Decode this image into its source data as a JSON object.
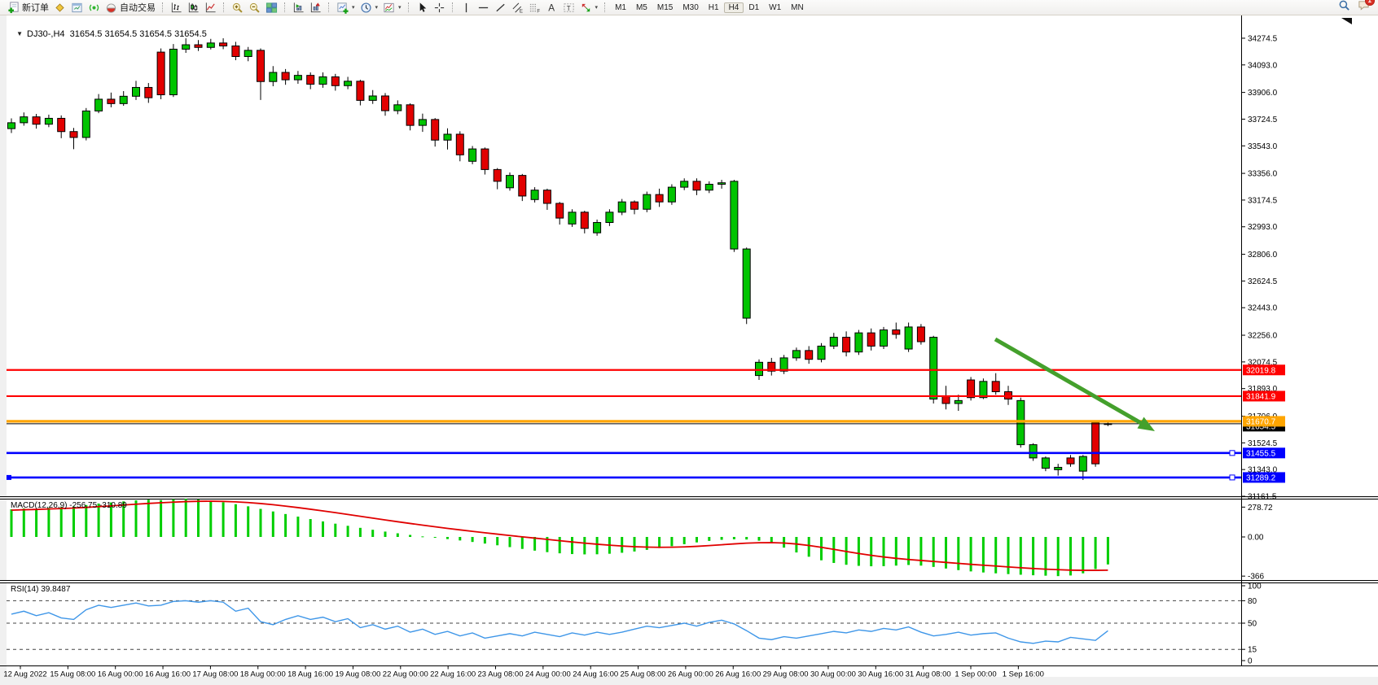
{
  "toolbar": {
    "buttons": [
      {
        "name": "new-order",
        "icon": "new-order-icon",
        "label": "新订单"
      },
      {
        "name": "charts",
        "icon": "chart-gold-icon"
      },
      {
        "name": "market-watch",
        "icon": "market-watch-icon"
      },
      {
        "name": "signals",
        "icon": "signals-icon"
      },
      {
        "name": "auto-trading",
        "icon": "auto-trading-icon",
        "label": "自动交易"
      },
      {
        "sep": true
      },
      {
        "name": "bar-chart-mode",
        "icon": "bar-chart-icon"
      },
      {
        "name": "candlestick-chart-mode",
        "icon": "candlestick-chart-icon"
      },
      {
        "name": "line-chart-mode",
        "icon": "line-chart-icon"
      },
      {
        "sep": true
      },
      {
        "name": "zoom-in",
        "icon": "zoom-in-icon"
      },
      {
        "name": "zoom-out",
        "icon": "zoom-out-icon"
      },
      {
        "name": "tile-windows",
        "icon": "tile-windows-icon"
      },
      {
        "sep": true
      },
      {
        "name": "navigator",
        "icon": "navigator-icon"
      },
      {
        "name": "data-window",
        "icon": "data-window-icon"
      },
      {
        "sep": true
      },
      {
        "name": "indicators",
        "icon": "indicators-icon",
        "arrow": true
      },
      {
        "name": "periods",
        "icon": "periods-icon",
        "arrow": true
      },
      {
        "name": "templates",
        "icon": "templates-icon",
        "arrow": true
      },
      {
        "sep": true
      },
      {
        "name": "cursor",
        "icon": "cursor-icon"
      },
      {
        "name": "crosshair",
        "icon": "crosshair-icon"
      },
      {
        "sep": true
      },
      {
        "name": "vertical-line",
        "icon": "vertical-line-icon"
      },
      {
        "name": "horizontal-line",
        "icon": "horizontal-line-icon"
      },
      {
        "name": "trendline",
        "icon": "trendline-icon"
      },
      {
        "name": "equidistant-channel",
        "icon": "equidistant-channel-icon"
      },
      {
        "name": "fibonacci-retracement",
        "icon": "fibonacci-icon"
      },
      {
        "name": "text",
        "icon": "text-icon"
      },
      {
        "name": "text-label",
        "icon": "text-label-icon"
      },
      {
        "name": "arrows",
        "icon": "arrows-icon",
        "arrow": true
      },
      {
        "sep": true
      }
    ],
    "timeframes": [
      {
        "label": "M1"
      },
      {
        "label": "M5"
      },
      {
        "label": "M15"
      },
      {
        "label": "M30"
      },
      {
        "label": "H1"
      },
      {
        "label": "H4",
        "active": true
      },
      {
        "label": "D1"
      },
      {
        "label": "W1"
      },
      {
        "label": "MN"
      }
    ],
    "right": [
      {
        "name": "search",
        "icon": "search-icon"
      },
      {
        "name": "notifications",
        "icon": "chat-icon",
        "badge": "1"
      }
    ]
  },
  "chart": {
    "title": "DJ30-,H4  31654.5 31654.5 31654.5 31654.5",
    "symbol": "DJ30-",
    "period": "H4",
    "ohlc": "31654.5 31654.5 31654.5 31654.5",
    "price_ticks": [
      "34274.5",
      "34093.0",
      "33906.0",
      "33724.5",
      "33543.0",
      "33356.0",
      "33174.5",
      "32993.0",
      "32806.0",
      "32624.5",
      "32443.0",
      "32256.0",
      "32074.5",
      "31893.0",
      "31706.0",
      "31524.5",
      "31343.0",
      "31161.5"
    ],
    "hlines": [
      {
        "price": 32019.8,
        "label": "32019.8",
        "color": "#FF0000",
        "width": 2.2
      },
      {
        "price": 31841.9,
        "label": "31841.9",
        "color": "#FF0000",
        "width": 2.2
      },
      {
        "price": 31670.7,
        "label": "31670.7",
        "color": "#FFA500",
        "width": 3.2
      },
      {
        "price": 31455.5,
        "label": "31455.5",
        "color": "#0000FF",
        "width": 2.6,
        "handle": true
      },
      {
        "price": 31289.2,
        "label": "31289.2",
        "color": "#0000FF",
        "width": 2.6,
        "handle": true,
        "left_handle": true
      }
    ],
    "current_price": {
      "value": 31654.5,
      "label": "31654.5",
      "color": "#000000"
    },
    "time_ticks": [
      "12 Aug 2022",
      "15 Aug 08:00",
      "16 Aug 00:00",
      "16 Aug 16:00",
      "17 Aug 08:00",
      "18 Aug 00:00",
      "18 Aug 16:00",
      "19 Aug 08:00",
      "22 Aug 00:00",
      "22 Aug 16:00",
      "23 Aug 08:00",
      "24 Aug 00:00",
      "24 Aug 16:00",
      "25 Aug 08:00",
      "26 Aug 00:00",
      "26 Aug 16:00",
      "29 Aug 08:00",
      "30 Aug 00:00",
      "30 Aug 16:00",
      "31 Aug 08:00",
      "1 Sep 00:00",
      "1 Sep 16:00"
    ],
    "colors": {
      "up": "#00C400",
      "down": "#E20000",
      "candle_outline": "#000000",
      "macd_histogram": "#00CE00",
      "macd_signal": "#E00000",
      "rsi_line": "#3E96E8",
      "arrow": "#44A02C",
      "axis_text": "#000000"
    }
  },
  "chart_data": {
    "type": "candlestick+indicators",
    "symbol": "DJ30-",
    "period": "H4",
    "title": "DJ30-,H4  31654.5 31654.5 31654.5 31654.5",
    "ylim": [
      31161.5,
      34424
    ],
    "candles": [
      [
        33660,
        33730,
        33630,
        33700
      ],
      [
        33700,
        33770,
        33680,
        33740
      ],
      [
        33740,
        33760,
        33660,
        33690
      ],
      [
        33690,
        33755,
        33670,
        33730
      ],
      [
        33730,
        33750,
        33595,
        33640
      ],
      [
        33640,
        33665,
        33520,
        33600
      ],
      [
        33600,
        33800,
        33580,
        33780
      ],
      [
        33780,
        33895,
        33765,
        33860
      ],
      [
        33860,
        33905,
        33805,
        33830
      ],
      [
        33830,
        33915,
        33815,
        33880
      ],
      [
        33880,
        33985,
        33855,
        33940
      ],
      [
        33940,
        33970,
        33835,
        33870
      ],
      [
        34180,
        34205,
        33860,
        33890
      ],
      [
        33890,
        34235,
        33875,
        34200
      ],
      [
        34200,
        34274,
        34175,
        34230
      ],
      [
        34230,
        34262,
        34188,
        34212
      ],
      [
        34212,
        34270,
        34198,
        34242
      ],
      [
        34242,
        34274,
        34200,
        34222
      ],
      [
        34222,
        34250,
        34125,
        34150
      ],
      [
        34150,
        34215,
        34118,
        34192
      ],
      [
        34192,
        34205,
        33855,
        33980
      ],
      [
        33980,
        34085,
        33948,
        34042
      ],
      [
        34042,
        34065,
        33958,
        33992
      ],
      [
        33992,
        34052,
        33965,
        34022
      ],
      [
        34022,
        34042,
        33928,
        33962
      ],
      [
        33962,
        34042,
        33938,
        34012
      ],
      [
        34012,
        34032,
        33918,
        33952
      ],
      [
        33952,
        34012,
        33928,
        33982
      ],
      [
        33982,
        33992,
        33818,
        33852
      ],
      [
        33852,
        33922,
        33828,
        33882
      ],
      [
        33882,
        33902,
        33748,
        33782
      ],
      [
        33782,
        33852,
        33758,
        33822
      ],
      [
        33822,
        33832,
        33648,
        33682
      ],
      [
        33682,
        33762,
        33638,
        33722
      ],
      [
        33722,
        33732,
        33538,
        33582
      ],
      [
        33582,
        33662,
        33518,
        33622
      ],
      [
        33622,
        33642,
        33438,
        33482
      ],
      [
        33438,
        33542,
        33418,
        33522
      ],
      [
        33522,
        33532,
        33348,
        33382
      ],
      [
        33382,
        33392,
        33248,
        33302
      ],
      [
        33258,
        33362,
        33238,
        33342
      ],
      [
        33342,
        33352,
        33168,
        33202
      ],
      [
        33178,
        33262,
        33158,
        33242
      ],
      [
        33242,
        33252,
        33108,
        33152
      ],
      [
        33152,
        33162,
        33008,
        33052
      ],
      [
        33012,
        33112,
        32992,
        33092
      ],
      [
        33092,
        33102,
        32948,
        32982
      ],
      [
        32952,
        33042,
        32932,
        33022
      ],
      [
        33022,
        33112,
        32998,
        33092
      ],
      [
        33092,
        33182,
        33072,
        33162
      ],
      [
        33162,
        33172,
        33078,
        33112
      ],
      [
        33112,
        33232,
        33092,
        33212
      ],
      [
        33212,
        33252,
        33128,
        33162
      ],
      [
        33162,
        33282,
        33142,
        33262
      ],
      [
        33262,
        33322,
        33242,
        33302
      ],
      [
        33302,
        33322,
        33208,
        33242
      ],
      [
        33242,
        33302,
        33222,
        33282
      ],
      [
        33282,
        33312,
        33252,
        33292
      ],
      [
        32842,
        33312,
        32822,
        33302
      ],
      [
        32372,
        32852,
        32332,
        32842
      ],
      [
        31982,
        32092,
        31952,
        32072
      ],
      [
        32072,
        32102,
        31982,
        32012
      ],
      [
        32012,
        32122,
        31992,
        32102
      ],
      [
        32102,
        32172,
        32082,
        32152
      ],
      [
        32152,
        32182,
        32062,
        32092
      ],
      [
        32092,
        32202,
        32072,
        32182
      ],
      [
        32182,
        32272,
        32162,
        32242
      ],
      [
        32242,
        32282,
        32112,
        32142
      ],
      [
        32142,
        32292,
        32122,
        32272
      ],
      [
        32272,
        32302,
        32152,
        32182
      ],
      [
        32182,
        32312,
        32162,
        32292
      ],
      [
        32292,
        32342,
        32232,
        32262
      ],
      [
        32162,
        32342,
        32142,
        32312
      ],
      [
        32312,
        32332,
        32192,
        32212
      ],
      [
        31822,
        32252,
        31792,
        32242
      ],
      [
        31842,
        31912,
        31752,
        31792
      ],
      [
        31792,
        31852,
        31742,
        31812
      ],
      [
        31952,
        31972,
        31812,
        31832
      ],
      [
        31832,
        31962,
        31822,
        31942
      ],
      [
        31942,
        31998,
        31852,
        31872
      ],
      [
        31872,
        31912,
        31782,
        31822
      ],
      [
        31512,
        31832,
        31492,
        31812
      ],
      [
        31422,
        31522,
        31402,
        31512
      ],
      [
        31352,
        31432,
        31332,
        31422
      ],
      [
        31342,
        31382,
        31302,
        31358
      ],
      [
        31422,
        31442,
        31362,
        31382
      ],
      [
        31332,
        31442,
        31272,
        31432
      ],
      [
        31662,
        31672,
        31362,
        31382
      ],
      [
        31650,
        31672,
        31638,
        31654.5
      ]
    ],
    "macd": {
      "label": "MACD(12,26,9) -256.75 -310.89",
      "params": "12,26,9",
      "main_value": -256.75,
      "signal_value": -310.89,
      "axis": [
        "278.72",
        "0.00",
        "-366"
      ],
      "axis_values": [
        278.72,
        0,
        -366
      ],
      "histogram": [
        258,
        266,
        262,
        272,
        278,
        284,
        298,
        312,
        322,
        332,
        342,
        348,
        344,
        352,
        356,
        350,
        338,
        324,
        306,
        286,
        262,
        238,
        214,
        190,
        167,
        145,
        124,
        104,
        85,
        67,
        50,
        34,
        19,
        5,
        -8,
        -20,
        -33,
        -47,
        -62,
        -78,
        -95,
        -112,
        -128,
        -142,
        -153,
        -160,
        -163,
        -162,
        -157,
        -148,
        -136,
        -121,
        -104,
        -86,
        -68,
        -51,
        -37,
        -27,
        -22,
        -24,
        -35,
        -60,
        -100,
        -145,
        -185,
        -218,
        -243,
        -260,
        -270,
        -274,
        -273,
        -268,
        -262,
        -268,
        -280,
        -295,
        -310,
        -322,
        -332,
        -340,
        -347,
        -353,
        -358,
        -362,
        -366,
        -360,
        -340,
        -300,
        -256.75
      ],
      "signal": [
        250,
        254,
        257,
        261,
        265,
        270,
        276,
        283,
        290,
        298,
        306,
        313,
        319,
        325,
        330,
        333,
        334,
        332,
        328,
        321,
        312,
        301,
        288,
        274,
        259,
        243,
        227,
        210,
        193,
        176,
        159,
        142,
        126,
        110,
        95,
        80,
        66,
        52,
        39,
        26,
        13,
        1,
        -11,
        -23,
        -35,
        -47,
        -58,
        -68,
        -77,
        -85,
        -91,
        -95,
        -97,
        -96,
        -93,
        -88,
        -81,
        -73,
        -65,
        -58,
        -54,
        -53,
        -57,
        -66,
        -80,
        -97,
        -116,
        -136,
        -155,
        -172,
        -187,
        -200,
        -211,
        -220,
        -229,
        -238,
        -247,
        -256,
        -264,
        -272,
        -280,
        -288,
        -295,
        -301,
        -306,
        -310,
        -312,
        -312,
        -310.89
      ]
    },
    "rsi": {
      "label": "RSI(14) 39.8487",
      "period": 14,
      "value": 39.8487,
      "axis": [
        "100",
        "80",
        "50",
        "15",
        "0"
      ],
      "axis_values": [
        100,
        80,
        50,
        15,
        0
      ],
      "levels": [
        80,
        50,
        15
      ],
      "values": [
        62,
        66,
        60,
        64,
        57,
        55,
        68,
        74,
        71,
        74,
        77,
        73,
        74,
        79,
        80,
        78,
        80,
        78,
        66,
        70,
        52,
        48,
        55,
        60,
        55,
        58,
        52,
        56,
        44,
        48,
        42,
        46,
        38,
        42,
        35,
        39,
        33,
        37,
        30,
        33,
        36,
        33,
        38,
        35,
        32,
        37,
        34,
        38,
        35,
        38,
        42,
        46,
        44,
        47,
        50,
        46,
        51,
        54,
        49,
        40,
        30,
        28,
        32,
        30,
        33,
        36,
        39,
        37,
        41,
        39,
        43,
        41,
        45,
        38,
        33,
        35,
        38,
        34,
        36,
        37,
        30,
        25,
        23,
        26,
        25,
        31,
        29,
        27,
        39.85
      ]
    },
    "annotations": [
      {
        "type": "arrow",
        "from_price": 32200,
        "to_price": 31590,
        "color": "#44A02C"
      }
    ]
  }
}
